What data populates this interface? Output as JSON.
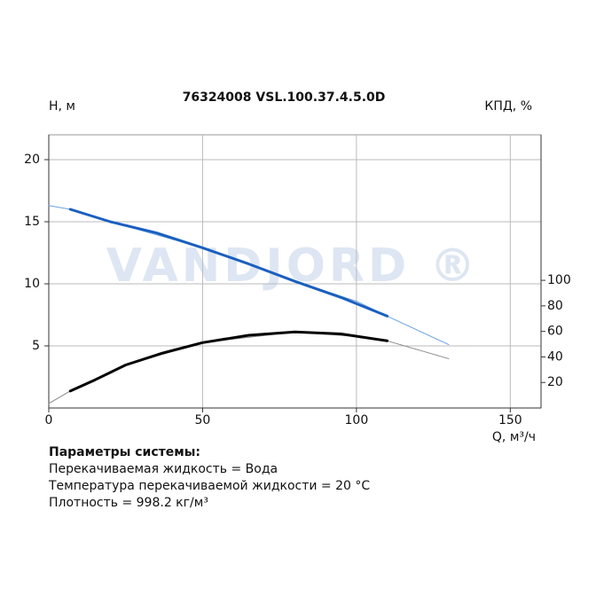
{
  "chart_data": {
    "type": "line",
    "title": "76324008 VSL.100.37.4.5.0D",
    "y_label": "H, м",
    "y2_label": "КПД, %",
    "x_label": "Q, м³/ч",
    "watermark": "VANDJORD ®",
    "xlim": [
      0,
      160
    ],
    "xticks": [
      0,
      50,
      100,
      150
    ],
    "ylim": [
      0,
      22
    ],
    "yticks": [
      5,
      10,
      15,
      20
    ],
    "y2lim": [
      0,
      214
    ],
    "y2ticks": [
      20,
      40,
      60,
      80,
      100
    ],
    "grid": true,
    "series": [
      {
        "color": "#6aa0e0",
        "line_width": 1,
        "x": [
          0,
          7,
          20,
          50,
          80,
          100,
          110,
          130
        ],
        "values": [
          16.3,
          16.0,
          15.0,
          12.9,
          10.2,
          8.6,
          7.4,
          5.1
        ]
      },
      {
        "color": "#1a5fc0",
        "line_width": 3,
        "x": [
          7,
          20,
          35,
          50,
          65,
          80,
          95,
          110
        ],
        "values": [
          16.0,
          15.0,
          14.1,
          12.9,
          11.6,
          10.2,
          8.9,
          7.4
        ]
      },
      {
        "color": "#888888",
        "line_width": 1,
        "axis": "y2",
        "x": [
          0,
          7,
          25,
          50,
          80,
          100,
          110,
          130
        ],
        "values": [
          3.5,
          13.3,
          33.7,
          51.2,
          59.6,
          56,
          52.6,
          38.6
        ]
      },
      {
        "color": "#000000",
        "line_width": 3,
        "axis": "y2",
        "x": [
          7,
          15,
          25,
          37,
          50,
          65,
          80,
          95,
          110
        ],
        "values": [
          13.3,
          22,
          33.7,
          43,
          51.2,
          57,
          59.6,
          58,
          52.6
        ]
      }
    ]
  },
  "params": {
    "heading": "Параметры системы:",
    "lines": [
      "Перекачиваемая жидкость = Вода",
      "Температура перекачиваемой жидкости = 20 °C",
      "Плотность = 998.2 кг/м³"
    ]
  }
}
